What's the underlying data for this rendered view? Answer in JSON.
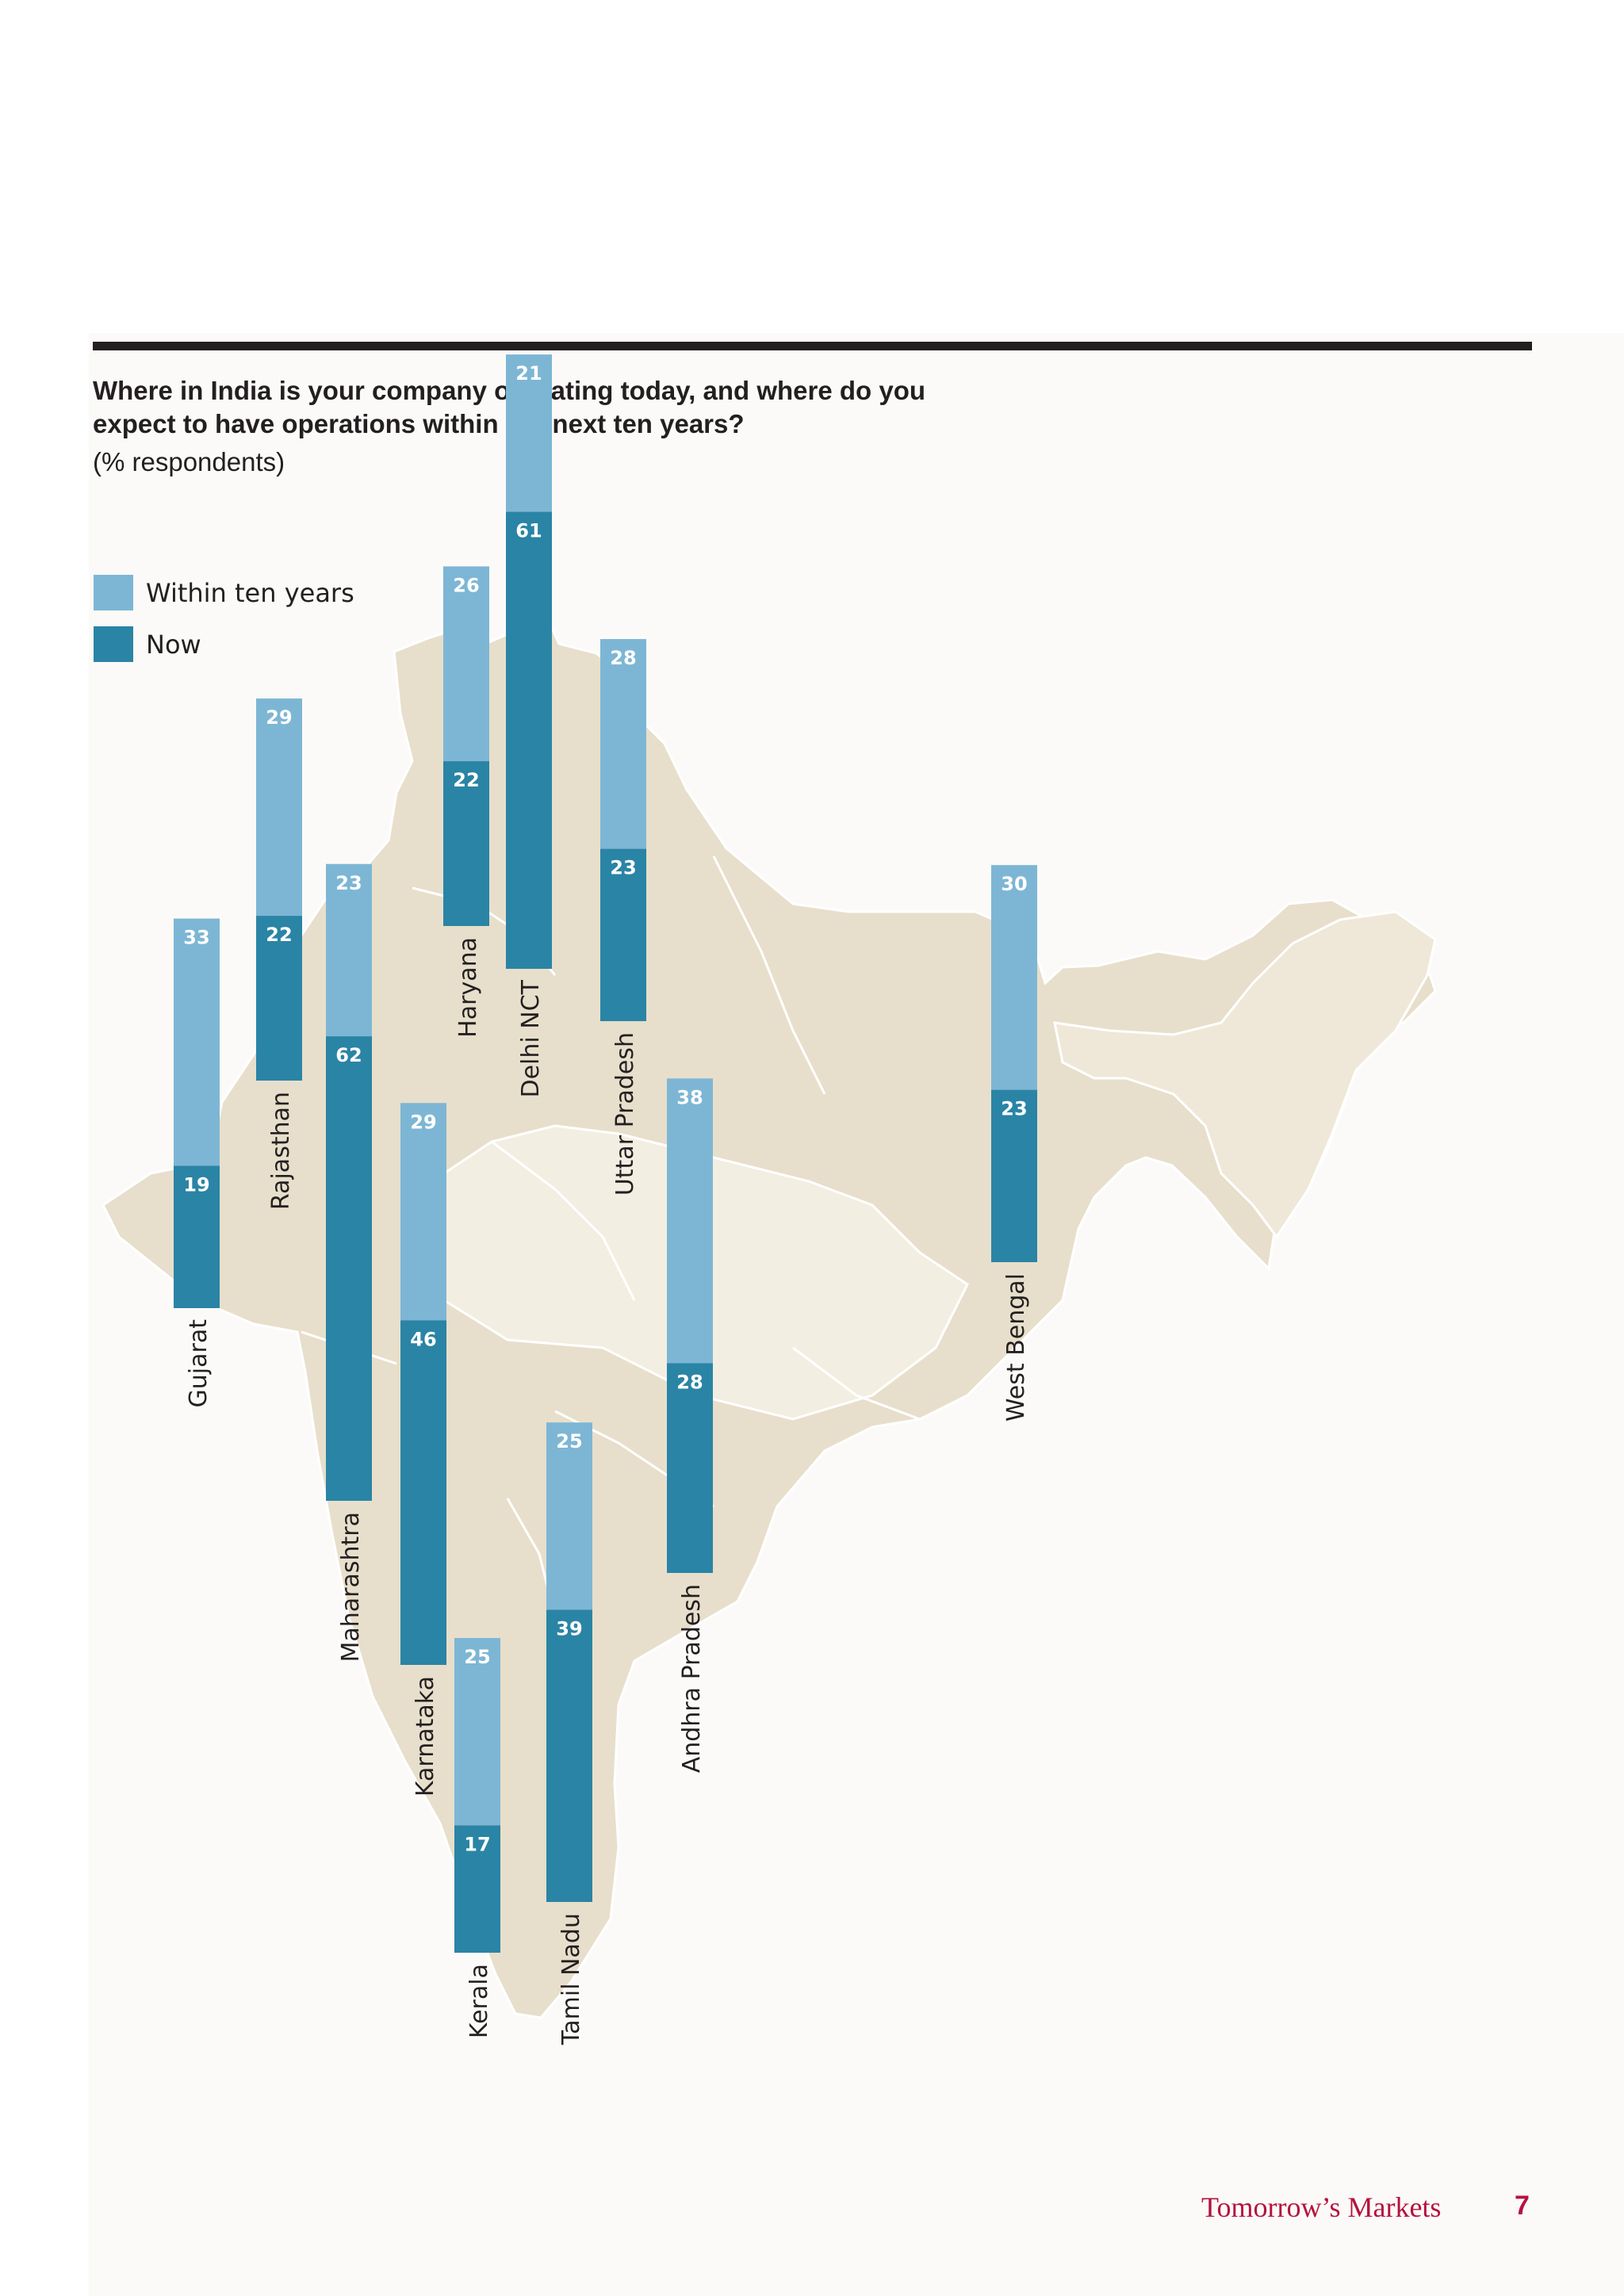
{
  "header": {
    "title": "Where in India is your company operating today, and where do you expect to have operations within the next ten years?",
    "subtitle": "(% respondents)"
  },
  "chart_data": {
    "type": "bar",
    "stacked": true,
    "title": "Where in India is your company operating today, and where do you expect to have operations within the next ten years?",
    "subtitle": "(% respondents)",
    "legend": [
      {
        "name": "Within ten years",
        "color": "#7db6d4"
      },
      {
        "name": "Now",
        "color": "#2a84a5"
      }
    ],
    "categories": [
      "Gujarat",
      "Rajasthan",
      "Maharashtra",
      "Haryana",
      "Delhi NCT",
      "Karnataka",
      "Kerala",
      "Tamil Nadu",
      "Uttar Pradesh",
      "Andhra Pradesh",
      "West Bengal"
    ],
    "series": [
      {
        "name": "Now",
        "values": [
          19,
          22,
          62,
          22,
          61,
          46,
          17,
          39,
          23,
          28,
          23
        ]
      },
      {
        "name": "Within ten years",
        "values": [
          33,
          29,
          23,
          26,
          21,
          29,
          25,
          25,
          28,
          38,
          30
        ]
      }
    ]
  },
  "footer": {
    "title": "Tomorrow’s Markets",
    "page_number": "7"
  }
}
